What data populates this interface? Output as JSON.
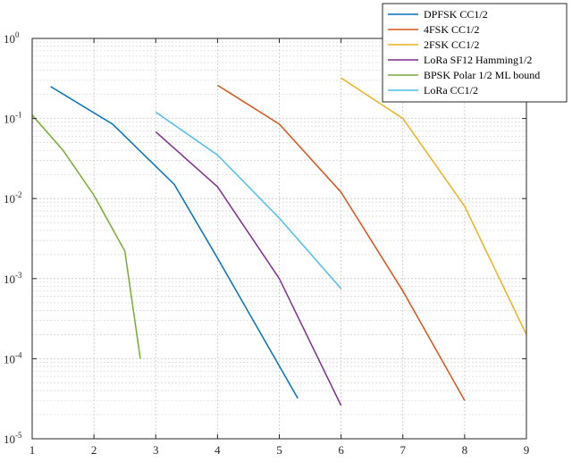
{
  "chart_data": {
    "type": "line",
    "title": "",
    "xlabel": "",
    "ylabel": "",
    "xlim": [
      1,
      9
    ],
    "ylim": [
      1e-05,
      1
    ],
    "yscale": "log",
    "grid": true,
    "minor_grid": true,
    "legend_position": "top-right",
    "x_ticks": [
      "1",
      "2",
      "3",
      "4",
      "5",
      "6",
      "7",
      "8",
      "9"
    ],
    "y_ticks": [
      {
        "value": 1,
        "base": "10",
        "exp": "0"
      },
      {
        "value": 0.1,
        "base": "10",
        "exp": "-1"
      },
      {
        "value": 0.01,
        "base": "10",
        "exp": "-2"
      },
      {
        "value": 0.001,
        "base": "10",
        "exp": "-3"
      },
      {
        "value": 0.0001,
        "base": "10",
        "exp": "-4"
      },
      {
        "value": 1e-05,
        "base": "10",
        "exp": "-5"
      }
    ],
    "series": [
      {
        "name": "DPFSK CC1/2",
        "color": "#0072BD",
        "x": [
          1.3,
          2.3,
          3.3,
          4.0,
          5.3
        ],
        "y": [
          0.25,
          0.085,
          0.015,
          0.0018,
          3.2e-05
        ]
      },
      {
        "name": "4FSK CC1/2",
        "color": "#D95319",
        "x": [
          4.0,
          5.0,
          6.0,
          7.0,
          8.0
        ],
        "y": [
          0.26,
          0.085,
          0.012,
          0.0007,
          3e-05
        ]
      },
      {
        "name": "2FSK CC1/2",
        "color": "#EDB120",
        "x": [
          6.0,
          7.0,
          8.0,
          9.0
        ],
        "y": [
          0.32,
          0.1,
          0.008,
          0.0002
        ]
      },
      {
        "name": "LoRa SF12  Hamming1/2",
        "color": "#7E2F8E",
        "x": [
          3.0,
          4.0,
          5.0,
          6.0
        ],
        "y": [
          0.068,
          0.014,
          0.001,
          2.6e-05
        ]
      },
      {
        "name": "BPSK Polar 1/2 ML bound",
        "color": "#77AC30",
        "x": [
          1.0,
          1.5,
          2.0,
          2.5,
          2.75
        ],
        "y": [
          0.11,
          0.04,
          0.011,
          0.0022,
          0.0001
        ]
      },
      {
        "name": "LoRa CC1/2",
        "color": "#4DBEEE",
        "x": [
          3.0,
          4.0,
          5.0,
          6.0
        ],
        "y": [
          0.12,
          0.035,
          0.0057,
          0.00075
        ]
      }
    ]
  }
}
